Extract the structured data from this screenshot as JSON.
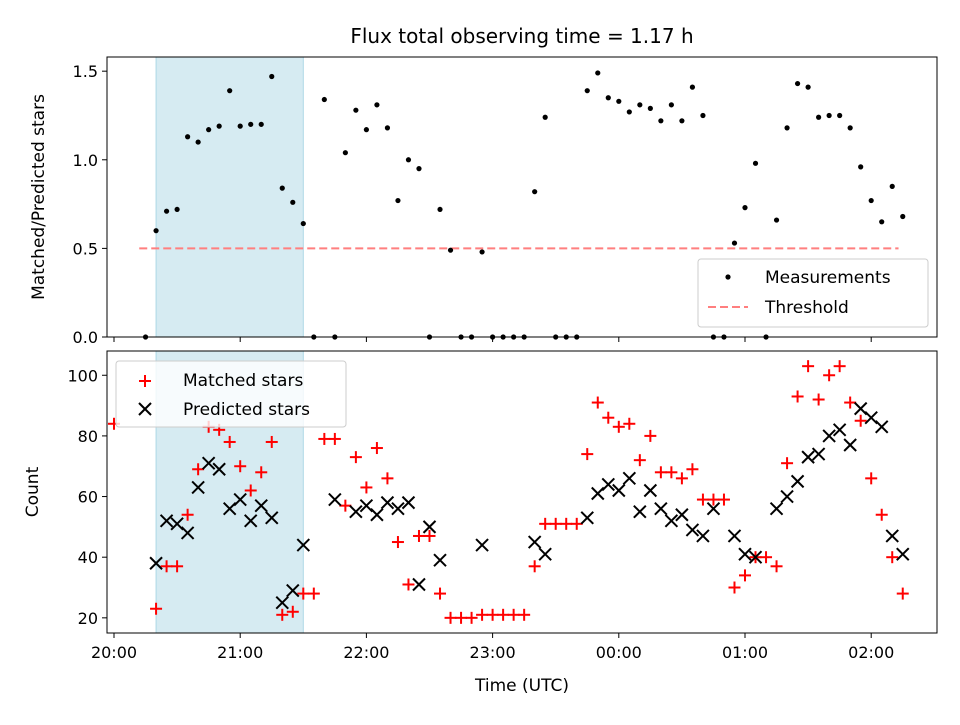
{
  "chart_data": [
    {
      "type": "scatter",
      "title": "Flux total observing time = 1.17 h",
      "xlabel": "",
      "ylabel": "Matched/Predicted stars",
      "xlim": [
        "20:00",
        "02:15"
      ],
      "ylim": [
        0,
        1.58
      ],
      "yticks": [
        0.0,
        0.5,
        1.0,
        1.5
      ],
      "ytick_labels": [
        "0.0",
        "0.5",
        "1.0",
        "1.5"
      ],
      "shaded_region": [
        "20:20",
        "21:30"
      ],
      "legend": {
        "placement": "lower-right",
        "entries": [
          "Measurements",
          "Threshold"
        ]
      },
      "series": [
        {
          "name": "Measurements",
          "marker": "dot",
          "color": "#000000",
          "x": [
            "20:15",
            "20:20",
            "20:25",
            "20:30",
            "20:35",
            "20:40",
            "20:45",
            "20:50",
            "20:55",
            "21:00",
            "21:05",
            "21:10",
            "21:15",
            "21:20",
            "21:25",
            "21:30",
            "21:35",
            "21:40",
            "21:45",
            "21:50",
            "21:55",
            "22:00",
            "22:05",
            "22:10",
            "22:15",
            "22:20",
            "22:25",
            "22:30",
            "22:35",
            "22:40",
            "22:45",
            "22:50",
            "22:55",
            "23:00",
            "23:05",
            "23:10",
            "23:15",
            "23:20",
            "23:25",
            "23:30",
            "23:35",
            "23:40",
            "23:45",
            "23:50",
            "23:55",
            "00:00",
            "00:05",
            "00:10",
            "00:15",
            "00:20",
            "00:25",
            "00:30",
            "00:35",
            "00:40",
            "00:45",
            "00:50",
            "00:55",
            "01:00",
            "01:05",
            "01:10",
            "01:15",
            "01:20",
            "01:25",
            "01:30",
            "01:35",
            "01:40",
            "01:45",
            "01:50",
            "01:55",
            "02:00",
            "02:05",
            "02:10",
            "02:15"
          ],
          "y": [
            0.0,
            0.6,
            0.71,
            0.72,
            1.13,
            1.1,
            1.17,
            1.19,
            1.39,
            1.19,
            1.2,
            1.2,
            1.47,
            0.84,
            0.76,
            0.64,
            0.0,
            1.34,
            0.0,
            1.04,
            1.28,
            1.17,
            1.31,
            1.18,
            0.77,
            1.0,
            0.95,
            0.0,
            0.72,
            0.49,
            0.0,
            0.0,
            0.48,
            0.0,
            0.0,
            0.0,
            0.0,
            0.82,
            1.24,
            0.0,
            0.0,
            0.0,
            1.39,
            1.49,
            1.35,
            1.33,
            1.27,
            1.31,
            1.29,
            1.22,
            1.31,
            1.22,
            1.41,
            1.25,
            0.0,
            0.0,
            0.53,
            0.73,
            0.98,
            0.0,
            0.66,
            1.18,
            1.43,
            1.41,
            1.24,
            1.25,
            1.25,
            1.18,
            0.96,
            0.77,
            0.65,
            0.85,
            0.68
          ]
        },
        {
          "name": "Threshold",
          "style": "dashed",
          "color": "#ff7f7f",
          "x": [
            "20:12",
            "02:13"
          ],
          "y": [
            0.5,
            0.5
          ]
        }
      ]
    },
    {
      "type": "scatter",
      "title": "",
      "xlabel": "Time (UTC)",
      "ylabel": "Count",
      "xlim": [
        "20:00",
        "02:15"
      ],
      "ylim": [
        15,
        108
      ],
      "yticks": [
        20,
        40,
        60,
        80,
        100
      ],
      "ytick_labels": [
        "20",
        "40",
        "60",
        "80",
        "100"
      ],
      "xticks": [
        "20:00",
        "21:00",
        "22:00",
        "23:00",
        "00:00",
        "01:00",
        "02:00"
      ],
      "xtick_labels": [
        "20:00",
        "21:00",
        "22:00",
        "23:00",
        "00:00",
        "01:00",
        "02:00"
      ],
      "shaded_region": [
        "20:20",
        "21:30"
      ],
      "legend": {
        "placement": "upper-left",
        "entries": [
          "Matched stars",
          "Predicted stars"
        ]
      },
      "series": [
        {
          "name": "Matched stars",
          "marker": "plus",
          "color": "#ff0000",
          "x": [
            "20:00",
            "20:20",
            "20:25",
            "20:30",
            "20:35",
            "20:40",
            "20:45",
            "20:50",
            "20:55",
            "21:00",
            "21:05",
            "21:10",
            "21:15",
            "21:20",
            "21:25",
            "21:30",
            "21:35",
            "21:40",
            "21:45",
            "21:50",
            "21:55",
            "22:00",
            "22:05",
            "22:10",
            "22:15",
            "22:20",
            "22:25",
            "22:30",
            "22:35",
            "22:40",
            "22:45",
            "22:50",
            "22:55",
            "23:00",
            "23:05",
            "23:10",
            "23:15",
            "23:20",
            "23:25",
            "23:30",
            "23:35",
            "23:40",
            "23:45",
            "23:50",
            "23:55",
            "00:00",
            "00:05",
            "00:10",
            "00:15",
            "00:20",
            "00:25",
            "00:30",
            "00:35",
            "00:40",
            "00:45",
            "00:50",
            "00:55",
            "01:00",
            "01:05",
            "01:10",
            "01:15",
            "01:20",
            "01:25",
            "01:30",
            "01:35",
            "01:40",
            "01:45",
            "01:50",
            "01:55",
            "02:00",
            "02:05",
            "02:10",
            "02:15"
          ],
          "y": [
            84,
            23,
            37,
            37,
            54,
            69,
            83,
            82,
            78,
            70,
            62,
            68,
            78,
            21,
            22,
            28,
            28,
            79,
            79,
            57,
            73,
            63,
            76,
            66,
            45,
            31,
            47,
            47,
            28,
            20,
            20,
            20,
            21,
            21,
            21,
            21,
            21,
            37,
            51,
            51,
            51,
            51,
            74,
            91,
            86,
            83,
            84,
            72,
            80,
            68,
            68,
            66,
            69,
            59,
            59,
            59,
            30,
            34,
            40,
            40,
            37,
            71,
            93,
            103,
            92,
            100,
            103,
            91,
            85,
            66,
            54,
            40,
            28
          ]
        },
        {
          "name": "Predicted stars",
          "marker": "x",
          "color": "#000000",
          "x": [
            "20:20",
            "20:25",
            "20:30",
            "20:35",
            "20:40",
            "20:45",
            "20:50",
            "20:55",
            "21:00",
            "21:05",
            "21:10",
            "21:15",
            "21:20",
            "21:25",
            "21:30",
            "21:45",
            "21:55",
            "22:00",
            "22:05",
            "22:10",
            "22:15",
            "22:20",
            "22:25",
            "22:30",
            "22:35",
            "22:55",
            "23:20",
            "23:25",
            "23:45",
            "23:50",
            "23:55",
            "00:00",
            "00:05",
            "00:10",
            "00:15",
            "00:20",
            "00:25",
            "00:30",
            "00:35",
            "00:40",
            "00:45",
            "00:55",
            "01:00",
            "01:05",
            "01:15",
            "01:20",
            "01:25",
            "01:30",
            "01:35",
            "01:40",
            "01:45",
            "01:50",
            "01:55",
            "02:00",
            "02:05",
            "02:10",
            "02:15"
          ],
          "y": [
            38,
            52,
            51,
            48,
            63,
            71,
            69,
            56,
            59,
            52,
            57,
            53,
            25,
            29,
            44,
            59,
            55,
            57,
            54,
            58,
            56,
            58,
            31,
            50,
            39,
            44,
            45,
            41,
            53,
            61,
            64,
            62,
            66,
            55,
            62,
            56,
            52,
            54,
            49,
            47,
            56,
            47,
            41,
            40,
            56,
            60,
            65,
            73,
            74,
            80,
            82,
            77,
            89,
            86,
            83,
            47,
            41
          ]
        }
      ]
    }
  ]
}
